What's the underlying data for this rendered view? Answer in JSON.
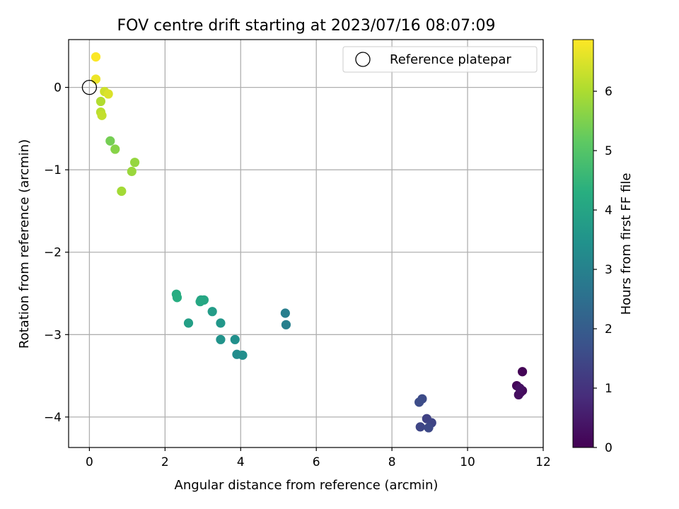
{
  "chart_data": {
    "type": "scatter",
    "title": "FOV centre drift starting at 2023/07/16 08:07:09",
    "xlabel": "Angular distance from reference (arcmin)",
    "ylabel": "Rotation from reference (arcmin)",
    "colorbar_label": "Hours from first FF file",
    "colormap": "viridis",
    "xlim": [
      -0.55,
      12.0
    ],
    "ylim": [
      -4.37,
      0.58
    ],
    "clim": [
      0,
      6.87
    ],
    "xticks": [
      "0",
      "2",
      "4",
      "6",
      "8",
      "10",
      "12"
    ],
    "yticks": [
      "0",
      "−1",
      "−2",
      "−3",
      "−4"
    ],
    "cticks": [
      "0",
      "1",
      "2",
      "3",
      "4",
      "5",
      "6"
    ],
    "grid": true,
    "legend": {
      "position": "top-right",
      "entries": [
        "Reference platepar"
      ]
    },
    "reference_point": {
      "x": 0,
      "y": 0
    },
    "points": [
      {
        "x": 11.45,
        "y": -3.45,
        "h": 0.05
      },
      {
        "x": 11.3,
        "y": -3.62,
        "h": 0.1
      },
      {
        "x": 11.45,
        "y": -3.68,
        "h": 0.15
      },
      {
        "x": 11.4,
        "y": -3.7,
        "h": 0.2
      },
      {
        "x": 11.35,
        "y": -3.73,
        "h": 0.25
      },
      {
        "x": 11.38,
        "y": -3.65,
        "h": 0.3
      },
      {
        "x": 8.8,
        "y": -3.78,
        "h": 1.55
      },
      {
        "x": 8.72,
        "y": -3.82,
        "h": 1.6
      },
      {
        "x": 8.92,
        "y": -4.02,
        "h": 1.35
      },
      {
        "x": 9.05,
        "y": -4.07,
        "h": 1.4
      },
      {
        "x": 8.75,
        "y": -4.12,
        "h": 1.45
      },
      {
        "x": 8.97,
        "y": -4.13,
        "h": 1.5
      },
      {
        "x": 5.18,
        "y": -2.74,
        "h": 2.9
      },
      {
        "x": 5.2,
        "y": -2.88,
        "h": 2.95
      },
      {
        "x": 3.9,
        "y": -3.24,
        "h": 3.3
      },
      {
        "x": 4.05,
        "y": -3.25,
        "h": 3.35
      },
      {
        "x": 3.85,
        "y": -3.06,
        "h": 3.4
      },
      {
        "x": 3.47,
        "y": -3.06,
        "h": 3.5
      },
      {
        "x": 3.47,
        "y": -2.86,
        "h": 3.6
      },
      {
        "x": 3.25,
        "y": -2.72,
        "h": 3.75
      },
      {
        "x": 2.62,
        "y": -2.86,
        "h": 3.85
      },
      {
        "x": 2.95,
        "y": -2.58,
        "h": 4.0
      },
      {
        "x": 3.03,
        "y": -2.58,
        "h": 4.05
      },
      {
        "x": 2.93,
        "y": -2.6,
        "h": 4.1
      },
      {
        "x": 2.3,
        "y": -2.51,
        "h": 4.2
      },
      {
        "x": 2.32,
        "y": -2.55,
        "h": 4.25
      },
      {
        "x": 0.55,
        "y": -0.65,
        "h": 5.4
      },
      {
        "x": 0.68,
        "y": -0.75,
        "h": 5.6
      },
      {
        "x": 1.2,
        "y": -0.91,
        "h": 5.75
      },
      {
        "x": 1.12,
        "y": -1.02,
        "h": 5.8
      },
      {
        "x": 0.85,
        "y": -1.26,
        "h": 5.9
      },
      {
        "x": 0.3,
        "y": -0.17,
        "h": 6.05
      },
      {
        "x": 0.3,
        "y": -0.3,
        "h": 6.15
      },
      {
        "x": 0.33,
        "y": -0.34,
        "h": 6.25
      },
      {
        "x": 0.4,
        "y": -0.05,
        "h": 6.35
      },
      {
        "x": 0.5,
        "y": -0.08,
        "h": 6.5
      },
      {
        "x": 0.17,
        "y": 0.1,
        "h": 6.7
      },
      {
        "x": 0.17,
        "y": 0.37,
        "h": 6.85
      }
    ]
  }
}
